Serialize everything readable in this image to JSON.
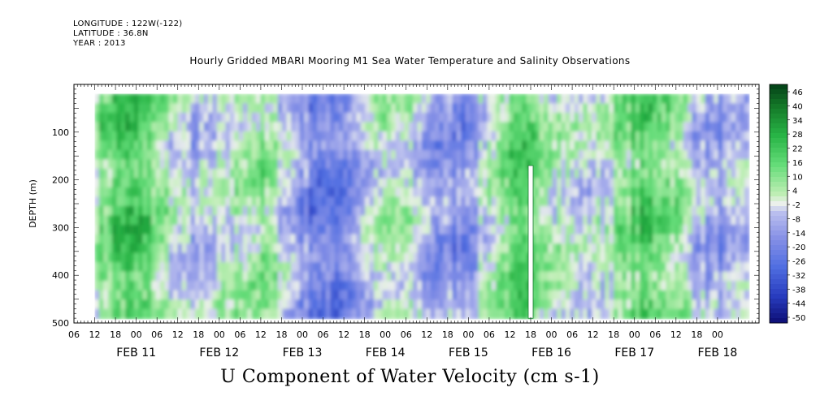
{
  "header": {
    "longitude": "LONGITUDE : 122W(-122)",
    "latitude": "LATITUDE : 36.8N",
    "year": "YEAR : 2013"
  },
  "chart_data": {
    "type": "heatmap",
    "title": "Hourly Gridded MBARI Mooring M1 Sea Water Temperature and Salinity Observations",
    "variable_title": "U Component of Water Velocity (cm s-1)",
    "ylabel": "DEPTH (m)",
    "y_axis": {
      "ylim": [
        500,
        0
      ],
      "inverted": true,
      "ticks": [
        100,
        200,
        300,
        400,
        500
      ],
      "data_range": [
        20,
        490
      ]
    },
    "x_axis": {
      "start": "2013-02-10 06:00",
      "end": "2013-02-18 12:00",
      "hour_tick_labels": [
        "06",
        "12",
        "18",
        "00",
        "06",
        "12",
        "18",
        "00",
        "06",
        "12",
        "18",
        "00",
        "06",
        "12",
        "18",
        "00",
        "06",
        "12",
        "18",
        "00",
        "06",
        "12",
        "18",
        "00",
        "06",
        "12",
        "18",
        "00",
        "06",
        "12",
        "18",
        "00"
      ],
      "day_labels": [
        "FEB 11",
        "FEB 12",
        "FEB 13",
        "FEB 14",
        "FEB 15",
        "FEB 16",
        "FEB 17",
        "FEB 18"
      ]
    },
    "colorbar": {
      "labels": [
        "46",
        "40",
        "34",
        "28",
        "22",
        "16",
        "10",
        "4",
        "-2",
        "-8",
        "-14",
        "-20",
        "-26",
        "-32",
        "-38",
        "-44",
        "-50"
      ],
      "range": [
        -50,
        48
      ],
      "colormap": "blue-white-green"
    },
    "grid": false,
    "legend_position": "right colorbar"
  }
}
